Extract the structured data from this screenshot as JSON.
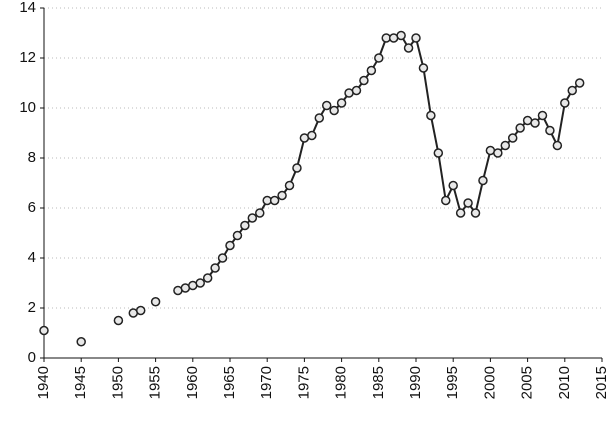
{
  "chart_data": {
    "type": "line",
    "x": [
      1940,
      1941,
      1942,
      1943,
      1944,
      1945,
      1946,
      1947,
      1948,
      1949,
      1950,
      1951,
      1952,
      1953,
      1954,
      1955,
      1956,
      1957,
      1958,
      1959,
      1960,
      1961,
      1962,
      1963,
      1964,
      1965,
      1966,
      1967,
      1968,
      1969,
      1970,
      1971,
      1972,
      1973,
      1974,
      1975,
      1976,
      1977,
      1978,
      1979,
      1980,
      1981,
      1982,
      1983,
      1984,
      1985,
      1986,
      1987,
      1988,
      1989,
      1990,
      1991,
      1992,
      1993,
      1994,
      1995,
      1996,
      1997,
      1998,
      1999,
      2000,
      2001,
      2002,
      2003,
      2004,
      2005,
      2006,
      2007,
      2008,
      2009,
      2010,
      2011,
      2012
    ],
    "series": [
      {
        "color": "#222222",
        "values": [
          1.1,
          null,
          null,
          null,
          null,
          0.65,
          null,
          null,
          null,
          null,
          1.5,
          null,
          1.8,
          1.9,
          null,
          2.25,
          null,
          null,
          2.7,
          2.8,
          2.9,
          3.0,
          3.2,
          3.6,
          4.0,
          4.5,
          4.9,
          5.3,
          5.6,
          5.8,
          6.3,
          6.3,
          6.5,
          6.9,
          7.6,
          8.8,
          8.9,
          9.6,
          10.1,
          9.9,
          10.2,
          10.6,
          10.7,
          11.1,
          11.5,
          12.0,
          12.8,
          12.8,
          12.9,
          12.4,
          12.8,
          11.6,
          9.7,
          8.2,
          6.3,
          6.9,
          5.8,
          6.2,
          5.8,
          7.1,
          8.3,
          8.2,
          8.5,
          8.8,
          9.2,
          9.5,
          9.4,
          9.7,
          9.1,
          8.5,
          10.2,
          10.7,
          11.0
        ]
      }
    ],
    "xlim": [
      1940,
      2015
    ],
    "xticks": [
      1940,
      1945,
      1950,
      1955,
      1960,
      1965,
      1970,
      1975,
      1980,
      1985,
      1990,
      1995,
      2000,
      2005,
      2010,
      2015
    ],
    "ylim": [
      0,
      14
    ],
    "yticks": [
      0,
      2,
      4,
      6,
      8,
      10,
      12,
      14
    ],
    "grid": true
  }
}
